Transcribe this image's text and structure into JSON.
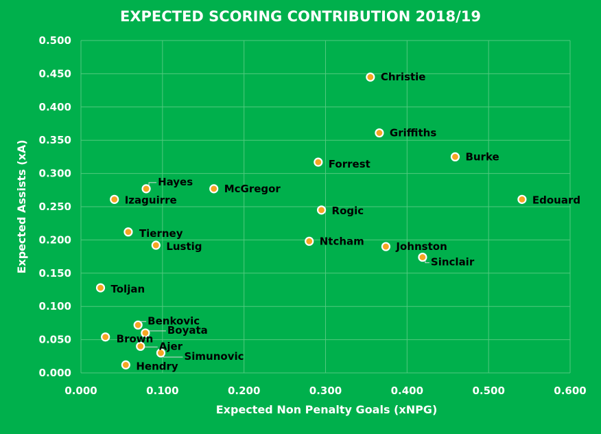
{
  "colors": {
    "background": "#00b04c",
    "gridline": "#52c97f",
    "marker_fill": "#f5a623",
    "marker_stroke": "#ffffff",
    "label_text": "#000000",
    "axis_text": "#ffffff"
  },
  "chart_data": {
    "type": "scatter",
    "title": "EXPECTED SCORING CONTRIBUTION 2018/19",
    "xlabel": "Expected Non Penalty Goals (xNPG)",
    "ylabel": "Expected Assists (xA)",
    "xlim": [
      0,
      0.6
    ],
    "ylim": [
      0,
      0.5
    ],
    "xticks": [
      "0.000",
      "0.100",
      "0.200",
      "0.300",
      "0.400",
      "0.500",
      "0.600"
    ],
    "yticks": [
      "0.000",
      "0.050",
      "0.100",
      "0.150",
      "0.200",
      "0.250",
      "0.300",
      "0.350",
      "0.400",
      "0.450",
      "0.500"
    ],
    "grid": true,
    "legend": "none",
    "points": [
      {
        "label": "Christie",
        "x": 0.355,
        "y": 0.445
      },
      {
        "label": "Griffiths",
        "x": 0.366,
        "y": 0.361
      },
      {
        "label": "Burke",
        "x": 0.459,
        "y": 0.325
      },
      {
        "label": "Forrest",
        "x": 0.291,
        "y": 0.317
      },
      {
        "label": "Hayes",
        "x": 0.08,
        "y": 0.277
      },
      {
        "label": "McGregor",
        "x": 0.163,
        "y": 0.277
      },
      {
        "label": "Izaguirre",
        "x": 0.041,
        "y": 0.261
      },
      {
        "label": "Edouard",
        "x": 0.541,
        "y": 0.261
      },
      {
        "label": "Rogic",
        "x": 0.295,
        "y": 0.245
      },
      {
        "label": "Tierney",
        "x": 0.058,
        "y": 0.212
      },
      {
        "label": "Lustig",
        "x": 0.092,
        "y": 0.192
      },
      {
        "label": "Ntcham",
        "x": 0.28,
        "y": 0.198
      },
      {
        "label": "Johnston",
        "x": 0.374,
        "y": 0.19
      },
      {
        "label": "Sinclair",
        "x": 0.419,
        "y": 0.174
      },
      {
        "label": "Toljan",
        "x": 0.024,
        "y": 0.128
      },
      {
        "label": "Benkovic",
        "x": 0.07,
        "y": 0.072
      },
      {
        "label": "Boyata",
        "x": 0.079,
        "y": 0.06
      },
      {
        "label": "Brown",
        "x": 0.03,
        "y": 0.054
      },
      {
        "label": "Ajer",
        "x": 0.073,
        "y": 0.04
      },
      {
        "label": "Simunovic",
        "x": 0.098,
        "y": 0.03
      },
      {
        "label": "Hendry",
        "x": 0.055,
        "y": 0.012
      }
    ]
  }
}
